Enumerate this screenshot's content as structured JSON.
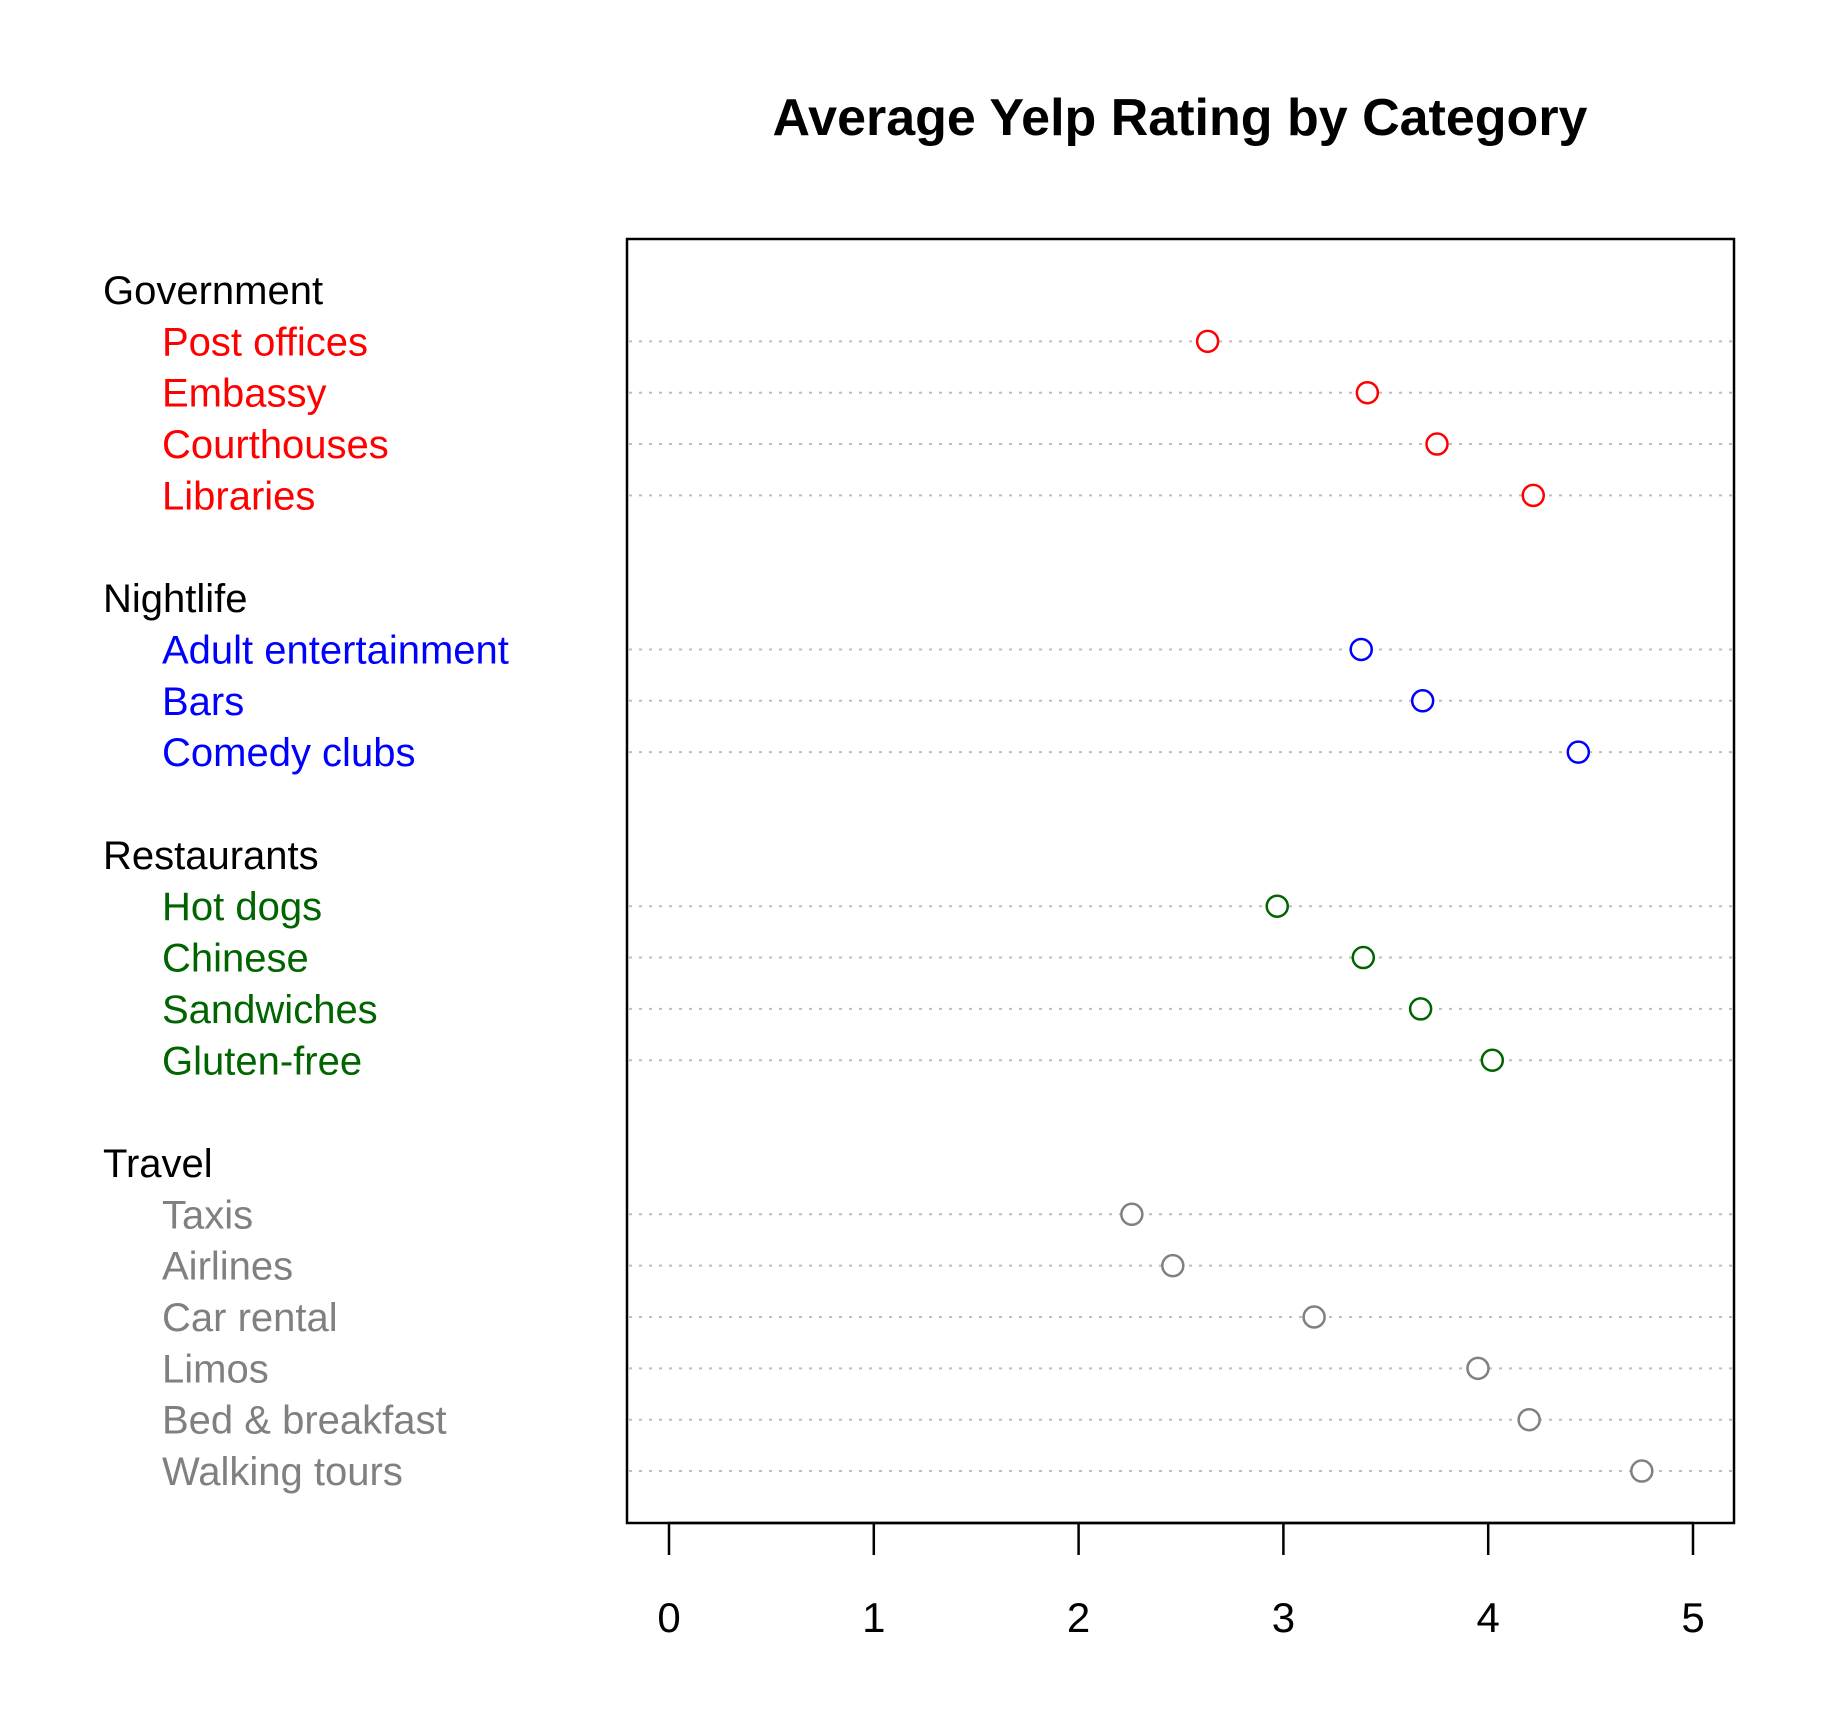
{
  "chart_data": {
    "type": "scatter",
    "subtype": "grouped dot chart",
    "title": "Average Yelp Rating by Category",
    "xlabel": "",
    "ylabel": "",
    "xlim": [
      0,
      5
    ],
    "x_ticks": [
      "0",
      "1",
      "2",
      "3",
      "4",
      "5"
    ],
    "grid": "dotted horizontal guide lines per item",
    "legend": "none",
    "marker": "open circle",
    "groups": [
      {
        "name": "Government",
        "color": "#ff0000",
        "items": [
          {
            "label": "Post offices",
            "value": 2.63
          },
          {
            "label": "Embassy",
            "value": 3.41
          },
          {
            "label": "Courthouses",
            "value": 3.75
          },
          {
            "label": "Libraries",
            "value": 4.22
          }
        ]
      },
      {
        "name": "Nightlife",
        "color": "#0000ff",
        "items": [
          {
            "label": "Adult entertainment",
            "value": 3.38
          },
          {
            "label": "Bars",
            "value": 3.68
          },
          {
            "label": "Comedy clubs",
            "value": 4.44
          }
        ]
      },
      {
        "name": "Restaurants",
        "color": "#006400",
        "items": [
          {
            "label": "Hot dogs",
            "value": 2.97
          },
          {
            "label": "Chinese",
            "value": 3.39
          },
          {
            "label": "Sandwiches",
            "value": 3.67
          },
          {
            "label": "Gluten-free",
            "value": 4.02
          }
        ]
      },
      {
        "name": "Travel",
        "color": "#808080",
        "items": [
          {
            "label": "Taxis",
            "value": 2.26
          },
          {
            "label": "Airlines",
            "value": 2.46
          },
          {
            "label": "Car rental",
            "value": 3.15
          },
          {
            "label": "Limos",
            "value": 3.95
          },
          {
            "label": "Bed & breakfast",
            "value": 4.2
          },
          {
            "label": "Walking tours",
            "value": 4.75
          }
        ]
      }
    ]
  }
}
